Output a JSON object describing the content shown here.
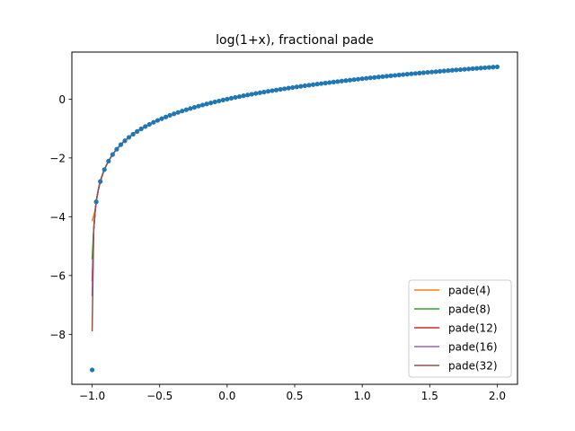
{
  "chart_data": {
    "type": "line",
    "title": "log(1+x), fractional pade",
    "xlabel": "",
    "ylabel": "",
    "xlim": [
      -1.15,
      2.15
    ],
    "ylim": [
      -9.7,
      1.6
    ],
    "xticks": [
      -1.0,
      -0.5,
      0.0,
      0.5,
      1.0,
      1.5,
      2.0
    ],
    "xtick_labels": [
      "−1.0",
      "−0.5",
      "0.0",
      "0.5",
      "1.0",
      "1.5",
      "2.0"
    ],
    "yticks": [
      -8,
      -6,
      -4,
      -2,
      0
    ],
    "ytick_labels": [
      "−8",
      "−6",
      "−4",
      "−2",
      "0"
    ],
    "grid": false,
    "legend_position": "lower-right",
    "scatter": {
      "x_min": -0.9999,
      "x_max": 2.0,
      "count": 100,
      "function": "log(1+x)",
      "color": "#1f77b4",
      "points": [
        {
          "x": -0.9999,
          "y": -9.21
        },
        {
          "x": -0.97,
          "y": -3.51
        },
        {
          "x": -0.94,
          "y": -2.81
        },
        {
          "x": -0.909,
          "y": -2.4
        },
        {
          "x": -0.879,
          "y": -2.11
        },
        {
          "x": -0.849,
          "y": -1.89
        },
        {
          "x": -0.818,
          "y": -1.71
        },
        {
          "x": -0.5,
          "y": -0.69
        },
        {
          "x": 0.0,
          "y": 0.0
        },
        {
          "x": 0.5,
          "y": 0.41
        },
        {
          "x": 1.0,
          "y": 0.69
        },
        {
          "x": 1.5,
          "y": 0.92
        },
        {
          "x": 2.0,
          "y": 1.1
        }
      ]
    },
    "series": [
      {
        "name": "pade(4)",
        "color": "#ff7f0e",
        "y_at_xmin": -4.15
      },
      {
        "name": "pade(8)",
        "color": "#2ca02c",
        "y_at_xmin": -5.45
      },
      {
        "name": "pade(12)",
        "color": "#d62728",
        "y_at_xmin": -6.2
      },
      {
        "name": "pade(16)",
        "color": "#9467bd",
        "y_at_xmin": -6.7
      },
      {
        "name": "pade(32)",
        "color": "#8c564b",
        "y_at_xmin": -7.9
      }
    ]
  }
}
